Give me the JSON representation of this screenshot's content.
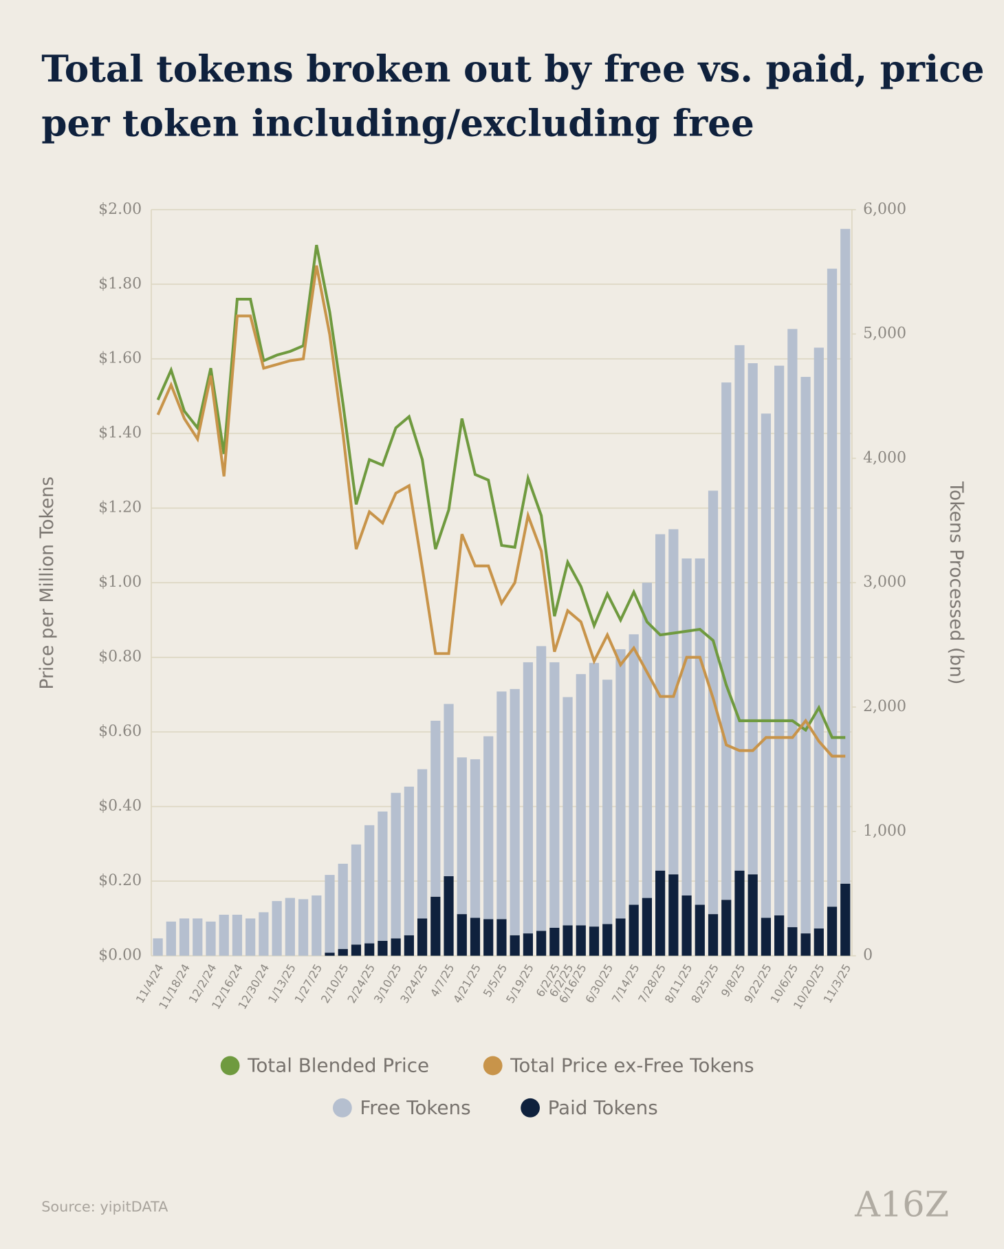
{
  "chart_data": {
    "type": "combo",
    "title": [
      "Total tokens broken out by free vs. paid, price",
      "per token including/excluding free"
    ],
    "y_label": "Price per Million Tokens",
    "y2_label": "Tokens Processed (bn)",
    "source": "Source: yipitDATA",
    "logo": "A16Z",
    "categories": [
      "11/4/24",
      null,
      "11/18/24",
      null,
      "12/2/24",
      null,
      "12/16/24",
      null,
      "12/30/24",
      null,
      "1/13/25",
      null,
      "1/27/25",
      null,
      "2/10/25",
      null,
      "2/24/25",
      null,
      "3/10/25",
      null,
      "3/24/25",
      null,
      "4/7/25",
      null,
      "4/21/25",
      null,
      "5/5/25",
      null,
      "5/19/25",
      null,
      "6/2/25",
      "6/2/25",
      "6/16/25",
      null,
      "6/30/25",
      null,
      "7/14/25",
      null,
      "7/28/25",
      null,
      "8/11/25",
      null,
      "8/25/25",
      null,
      "9/8/25",
      null,
      "9/22/25",
      null,
      "10/6/25",
      null,
      "10/20/25",
      null,
      "11/3/25"
    ],
    "ylim": [
      0,
      2
    ],
    "yticks": [
      {
        "value": 0,
        "label": "$0.00"
      },
      {
        "value": 0.2,
        "label": "$0.20"
      },
      {
        "value": 0.4,
        "label": "$0.40"
      },
      {
        "value": 0.6,
        "label": "$0.60"
      },
      {
        "value": 0.8,
        "label": "$0.80"
      },
      {
        "value": 1,
        "label": "$1.00"
      },
      {
        "value": 1.2,
        "label": "$1.20"
      },
      {
        "value": 1.4,
        "label": "$1.40"
      },
      {
        "value": 1.6,
        "label": "$1.60"
      },
      {
        "value": 1.8,
        "label": "$1.80"
      },
      {
        "value": 2,
        "label": "$2.00"
      }
    ],
    "y2lim": [
      0,
      6000
    ],
    "y2ticks": [
      0,
      {
        "value": 1000,
        "label": "1,000"
      },
      {
        "value": 2000,
        "label": "2,000"
      },
      {
        "value": 3000,
        "label": "3,000"
      },
      {
        "value": 4000,
        "label": "4,000"
      },
      {
        "value": 5000,
        "label": "5,000"
      },
      {
        "value": 6000,
        "label": "6,000"
      }
    ],
    "grid": true,
    "series": [
      {
        "name": "Total Blended Price",
        "type": "line",
        "color": "#6f9a3f",
        "values": [
          1.49,
          1.57,
          1.46,
          1.415,
          1.575,
          1.345,
          1.76,
          1.76,
          1.595,
          1.61,
          1.62,
          1.635,
          1.905,
          1.725,
          1.48,
          1.21,
          1.33,
          1.315,
          1.415,
          1.445,
          1.33,
          1.09,
          1.195,
          1.44,
          1.29,
          1.275,
          1.1,
          1.095,
          1.28,
          1.18,
          0.91,
          1.055,
          0.99,
          0.885,
          0.97,
          0.9,
          0.975,
          0.895,
          0.86,
          0.865,
          0.87,
          0.875,
          0.845,
          0.725,
          0.63,
          0.63,
          0.63,
          0.63,
          0.63,
          0.605,
          0.665,
          0.585,
          0.585
        ]
      },
      {
        "name": "Total Price ex-Free Tokens",
        "type": "line",
        "color": "#c8944a",
        "values": [
          1.45,
          1.53,
          1.44,
          1.385,
          1.555,
          1.285,
          1.715,
          1.715,
          1.575,
          1.585,
          1.595,
          1.6,
          1.85,
          1.665,
          1.4,
          1.09,
          1.19,
          1.16,
          1.24,
          1.26,
          1.04,
          0.81,
          0.81,
          1.13,
          1.045,
          1.045,
          0.945,
          1,
          1.18,
          1.085,
          0.815,
          0.925,
          0.895,
          0.79,
          0.86,
          0.78,
          0.825,
          0.76,
          0.695,
          0.695,
          0.8,
          0.8,
          0.69,
          0.565,
          0.55,
          0.55,
          0.585,
          0.585,
          0.585,
          0.63,
          0.575,
          0.535,
          0.535
        ]
      },
      {
        "name": "Free Tokens",
        "type": "bar",
        "axis": "y2",
        "color": "#b5bfcf",
        "values": [
          140,
          275,
          300,
          300,
          275,
          330,
          330,
          300,
          350,
          440,
          465,
          455,
          485,
          625,
          685,
          805,
          950,
          1040,
          1170,
          1195,
          1200,
          1415,
          1385,
          1260,
          1275,
          1470,
          1830,
          1980,
          2180,
          2290,
          2135,
          1835,
          2020,
          2120,
          1965,
          2165,
          2175,
          2535,
          2705,
          2775,
          2710,
          2785,
          3405,
          4160,
          4225,
          4110,
          4055,
          4420,
          4810,
          4475,
          4670,
          5130,
          5265
        ]
      },
      {
        "name": "Paid Tokens",
        "type": "bar",
        "axis": "y2",
        "color": "#0f213d",
        "values": [
          0,
          0,
          0,
          0,
          0,
          0,
          0,
          0,
          0,
          0,
          0,
          0,
          0,
          25,
          55,
          90,
          100,
          120,
          140,
          165,
          300,
          475,
          640,
          335,
          305,
          295,
          295,
          165,
          180,
          200,
          225,
          245,
          245,
          235,
          255,
          300,
          410,
          465,
          685,
          655,
          485,
          410,
          335,
          450,
          685,
          655,
          305,
          325,
          230,
          180,
          220,
          395,
          580
        ]
      }
    ]
  }
}
